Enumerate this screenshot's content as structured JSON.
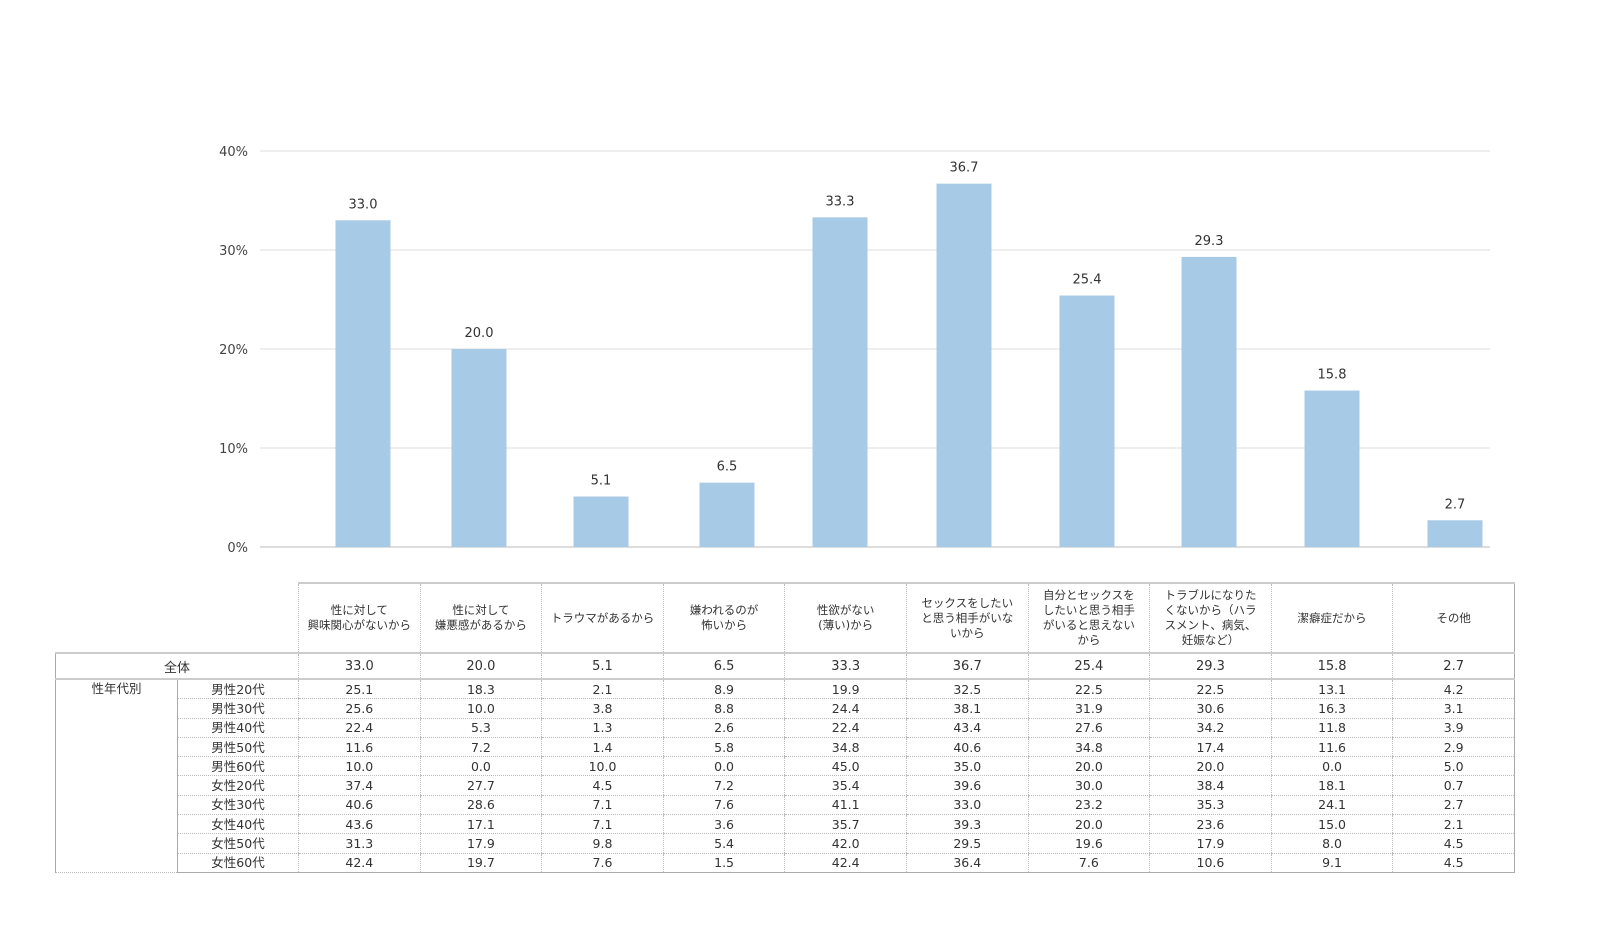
{
  "chart_data": {
    "type": "bar",
    "categories": [
      "性に対して\n興味関心がないから",
      "性に対して\n嫌悪感があるから",
      "トラウマがあるから",
      "嫌われるのが\n怖いから",
      "性欲がない\n(薄い)から",
      "セックスをしたい\nと思う相手がいな\nいから",
      "自分とセックスを\nしたいと思う相手\nがいると思えない\nから",
      "トラブルになりた\nくないから（ハラ\nスメント、病気、\n妊娠など）",
      "潔癖症だから",
      "その他"
    ],
    "values": [
      33.0,
      20.0,
      5.1,
      6.5,
      33.3,
      36.7,
      25.4,
      29.3,
      15.8,
      2.7
    ],
    "value_labels": [
      "33.0",
      "20.0",
      "5.1",
      "6.5",
      "33.3",
      "36.7",
      "25.4",
      "29.3",
      "15.8",
      "2.7"
    ],
    "yticks": [
      "0%",
      "10%",
      "20%",
      "30%",
      "40%"
    ],
    "ylim": [
      0,
      40
    ],
    "grid": true,
    "bar_color": "#a7cae6"
  },
  "table": {
    "total_label": "全体",
    "total": [
      "33.0",
      "20.0",
      "5.1",
      "6.5",
      "33.3",
      "36.7",
      "25.4",
      "29.3",
      "15.8",
      "2.7"
    ],
    "group_label": "性年代別",
    "rows": [
      {
        "label": "男性20代",
        "values": [
          "25.1",
          "18.3",
          "2.1",
          "8.9",
          "19.9",
          "32.5",
          "22.5",
          "22.5",
          "13.1",
          "4.2"
        ]
      },
      {
        "label": "男性30代",
        "values": [
          "25.6",
          "10.0",
          "3.8",
          "8.8",
          "24.4",
          "38.1",
          "31.9",
          "30.6",
          "16.3",
          "3.1"
        ]
      },
      {
        "label": "男性40代",
        "values": [
          "22.4",
          "5.3",
          "1.3",
          "2.6",
          "22.4",
          "43.4",
          "27.6",
          "34.2",
          "11.8",
          "3.9"
        ]
      },
      {
        "label": "男性50代",
        "values": [
          "11.6",
          "7.2",
          "1.4",
          "5.8",
          "34.8",
          "40.6",
          "34.8",
          "17.4",
          "11.6",
          "2.9"
        ]
      },
      {
        "label": "男性60代",
        "values": [
          "10.0",
          "0.0",
          "10.0",
          "0.0",
          "45.0",
          "35.0",
          "20.0",
          "20.0",
          "0.0",
          "5.0"
        ]
      },
      {
        "label": "女性20代",
        "values": [
          "37.4",
          "27.7",
          "4.5",
          "7.2",
          "35.4",
          "39.6",
          "30.0",
          "38.4",
          "18.1",
          "0.7"
        ]
      },
      {
        "label": "女性30代",
        "values": [
          "40.6",
          "28.6",
          "7.1",
          "7.6",
          "41.1",
          "33.0",
          "23.2",
          "35.3",
          "24.1",
          "2.7"
        ]
      },
      {
        "label": "女性40代",
        "values": [
          "43.6",
          "17.1",
          "7.1",
          "3.6",
          "35.7",
          "39.3",
          "20.0",
          "23.6",
          "15.0",
          "2.1"
        ]
      },
      {
        "label": "女性50代",
        "values": [
          "31.3",
          "17.9",
          "9.8",
          "5.4",
          "42.0",
          "29.5",
          "19.6",
          "17.9",
          "8.0",
          "4.5"
        ]
      },
      {
        "label": "女性60代",
        "values": [
          "42.4",
          "19.7",
          "7.6",
          "1.5",
          "42.4",
          "36.4",
          "7.6",
          "10.6",
          "9.1",
          "4.5"
        ]
      }
    ]
  }
}
